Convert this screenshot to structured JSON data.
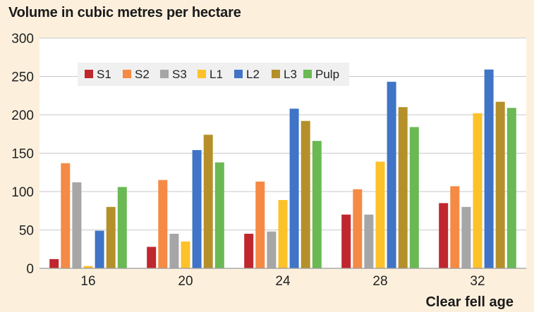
{
  "chart_data": {
    "type": "bar",
    "title": "Volume in cubic metres per hectare",
    "xlabel": "Clear fell age",
    "ylabel": "",
    "categories": [
      "16",
      "20",
      "24",
      "28",
      "32"
    ],
    "ylim": [
      0,
      300
    ],
    "yticks": [
      0,
      50,
      100,
      150,
      200,
      250,
      300
    ],
    "grid": true,
    "legend_position": "top-left",
    "series": [
      {
        "name": "S1",
        "color": "#c0262d",
        "values": [
          12,
          28,
          45,
          70,
          85
        ]
      },
      {
        "name": "S2",
        "color": "#f58a45",
        "values": [
          137,
          115,
          113,
          103,
          107
        ]
      },
      {
        "name": "S3",
        "color": "#a6a6a6",
        "values": [
          112,
          45,
          48,
          70,
          80
        ]
      },
      {
        "name": "L1",
        "color": "#fdc12a",
        "values": [
          3,
          35,
          89,
          139,
          202
        ]
      },
      {
        "name": "L2",
        "color": "#3f74c6",
        "values": [
          49,
          154,
          208,
          243,
          259
        ]
      },
      {
        "name": "L3",
        "color": "#b5902a",
        "values": [
          80,
          174,
          192,
          210,
          217
        ]
      },
      {
        "name": "Pulp",
        "color": "#6ab954",
        "values": [
          106,
          138,
          166,
          184,
          209
        ]
      }
    ]
  }
}
